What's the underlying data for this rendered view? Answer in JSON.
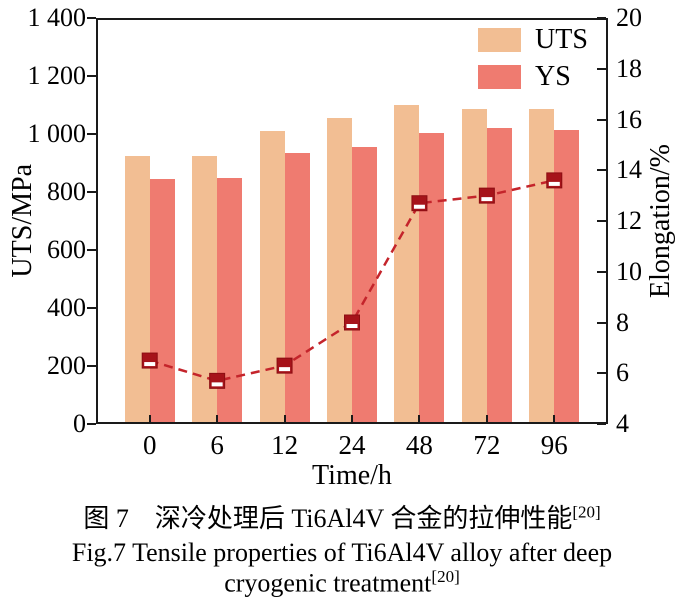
{
  "figure": {
    "caption_zh": "图 7　深冷处理后 Ti6Al4V 合金的拉伸性能",
    "caption_zh_sup": "[20]",
    "caption_en_line1": "Fig.7 Tensile properties of Ti6Al4V alloy after deep",
    "caption_en_line2": "cryogenic treatment",
    "caption_en_sup": "[20]"
  },
  "chart_data": {
    "type": "bar",
    "categories": [
      "0",
      "6",
      "12",
      "24",
      "48",
      "72",
      "96"
    ],
    "series": [
      {
        "name": "UTS",
        "kind": "bar",
        "axis": "left",
        "color": "#F2BE93",
        "values": [
          925,
          925,
          1010,
          1055,
          1100,
          1085,
          1085
        ]
      },
      {
        "name": "YS",
        "kind": "bar",
        "axis": "left",
        "color": "#EF7B70",
        "values": [
          845,
          850,
          935,
          955,
          1005,
          1020,
          1015
        ]
      },
      {
        "name": "Elongation",
        "kind": "line",
        "axis": "right",
        "line_color": "#C4242B",
        "marker_color": "#A6131A",
        "values": [
          6.5,
          5.7,
          6.3,
          8.0,
          12.7,
          13.0,
          13.6
        ]
      }
    ],
    "xlabel": "Time/h",
    "ylabel_left": "UTS/MPa",
    "ylabel_right": "Elongation/%",
    "ylim_left": [
      0,
      1400
    ],
    "ylim_right": [
      4,
      20
    ],
    "yticks_left": [
      "0",
      "200",
      "400",
      "600",
      "800",
      "1 000",
      "1 200",
      "1 400"
    ],
    "yticks_right": [
      "4",
      "6",
      "8",
      "10",
      "12",
      "14",
      "16",
      "18",
      "20"
    ],
    "legend": [
      "UTS",
      "YS"
    ],
    "legend_position": "top-right",
    "grid": false,
    "axis_color": "#1a1a1a"
  }
}
